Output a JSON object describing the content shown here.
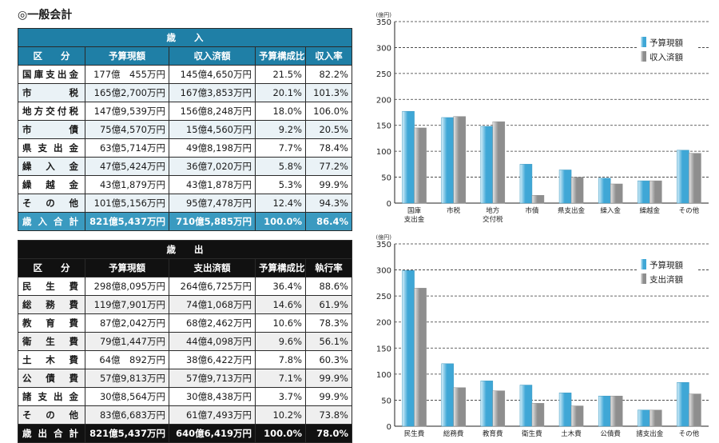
{
  "title": "◎一般会計",
  "revenue": {
    "caption": "歳　　入",
    "headers": [
      "区　　分",
      "予算現額",
      "収入済額",
      "予算構成比",
      "収入率"
    ],
    "rows": [
      {
        "label": "国庫支出金",
        "a": "177億　455万円",
        "b": "145億4,650万円",
        "c": "21.5%",
        "d": "82.2%"
      },
      {
        "label": "市　　税",
        "a": "165億2,700万円",
        "b": "167億3,853万円",
        "c": "20.1%",
        "d": "101.3%"
      },
      {
        "label": "地方交付税",
        "a": "147億9,539万円",
        "b": "156億8,248万円",
        "c": "18.0%",
        "d": "106.0%"
      },
      {
        "label": "市　　債",
        "a": "75億4,570万円",
        "b": "15億4,560万円",
        "c": "9.2%",
        "d": "20.5%"
      },
      {
        "label": "県支出金",
        "a": "63億5,714万円",
        "b": "49億8,198万円",
        "c": "7.7%",
        "d": "78.4%"
      },
      {
        "label": "繰入金",
        "a": "47億5,424万円",
        "b": "36億7,020万円",
        "c": "5.8%",
        "d": "77.2%"
      },
      {
        "label": "繰越金",
        "a": "43億1,879万円",
        "b": "43億1,878万円",
        "c": "5.3%",
        "d": "99.9%"
      },
      {
        "label": "その他",
        "a": "101億5,156万円",
        "b": "95億7,478万円",
        "c": "12.4%",
        "d": "94.3%"
      }
    ],
    "total": {
      "label": "歳入合計",
      "a": "821億5,437万円",
      "b": "710億5,885万円",
      "c": "100.0%",
      "d": "86.4%"
    }
  },
  "expenditure": {
    "caption": "歳　　出",
    "headers": [
      "区　　分",
      "予算現額",
      "支出済額",
      "予算構成比",
      "執行率"
    ],
    "rows": [
      {
        "label": "民生費",
        "a": "298億8,095万円",
        "b": "264億6,725万円",
        "c": "36.4%",
        "d": "88.6%"
      },
      {
        "label": "総務費",
        "a": "119億7,901万円",
        "b": "74億1,068万円",
        "c": "14.6%",
        "d": "61.9%"
      },
      {
        "label": "教育費",
        "a": "87億2,042万円",
        "b": "68億2,462万円",
        "c": "10.6%",
        "d": "78.3%"
      },
      {
        "label": "衛生費",
        "a": "79億1,447万円",
        "b": "44億4,098万円",
        "c": "9.6%",
        "d": "56.1%"
      },
      {
        "label": "土木費",
        "a": "64億　892万円",
        "b": "38億6,422万円",
        "c": "7.8%",
        "d": "60.3%"
      },
      {
        "label": "公債費",
        "a": "57億9,813万円",
        "b": "57億9,713万円",
        "c": "7.1%",
        "d": "99.9%"
      },
      {
        "label": "諸支出金",
        "a": "30億8,564万円",
        "b": "30億8,438万円",
        "c": "3.7%",
        "d": "99.9%"
      },
      {
        "label": "その他",
        "a": "83億6,683万円",
        "b": "61億7,493万円",
        "c": "10.2%",
        "d": "73.8%"
      }
    ],
    "total": {
      "label": "歳出合計",
      "a": "821億5,437万円",
      "b": "640億6,419万円",
      "c": "100.0%",
      "d": "78.0%"
    }
  },
  "chart_data": [
    {
      "type": "bar",
      "unit": "(億円)",
      "ylim": [
        0,
        350
      ],
      "yticks": [
        0,
        50,
        100,
        150,
        200,
        250,
        300,
        350
      ],
      "grid": true,
      "legend": "top-right",
      "categories": [
        "国庫\n支出金",
        "市税",
        "地方\n交付税",
        "市債",
        "県支出金",
        "繰入金",
        "繰越金",
        "その他"
      ],
      "series": [
        {
          "name": "予算現額",
          "color": "#5ab4d8",
          "values": [
            177,
            165,
            148,
            75,
            64,
            48,
            43,
            102
          ]
        },
        {
          "name": "収入済額",
          "color": "#a8a8a8",
          "values": [
            145,
            167,
            157,
            15,
            50,
            37,
            43,
            96
          ]
        }
      ]
    },
    {
      "type": "bar",
      "unit": "(億円)",
      "ylim": [
        0,
        350
      ],
      "yticks": [
        0,
        50,
        100,
        150,
        200,
        250,
        300,
        350
      ],
      "grid": true,
      "legend": "top-right",
      "categories": [
        "民生費",
        "総務費",
        "教育費",
        "衛生費",
        "土木費",
        "公債費",
        "諸支出金",
        "その他"
      ],
      "series": [
        {
          "name": "予算現額",
          "color": "#5ab4d8",
          "values": [
            299,
            120,
            87,
            79,
            64,
            58,
            31,
            84
          ]
        },
        {
          "name": "支出済額",
          "color": "#a8a8a8",
          "values": [
            265,
            74,
            68,
            44,
            39,
            58,
            31,
            62
          ]
        }
      ]
    }
  ]
}
